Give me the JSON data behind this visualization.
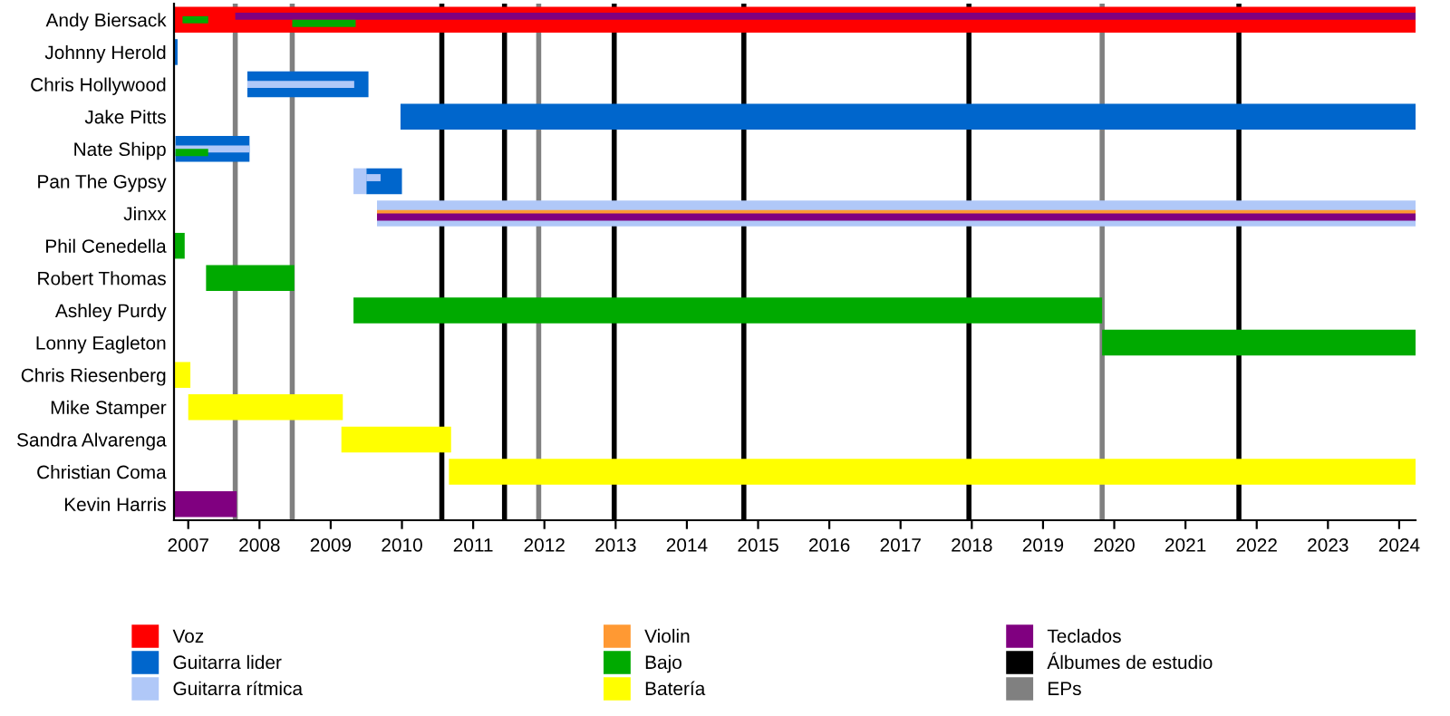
{
  "chart_data": {
    "type": "bar",
    "orientation": "horizontal",
    "categories": [
      "Andy Biersack",
      "Johnny Herold",
      "Chris Hollywood",
      "Jake Pitts",
      "Nate Shipp",
      "Pan The Gypsy",
      "Jinxx",
      "Phil Cenedella",
      "Robert Thomas",
      "Ashley Purdy",
      "Lonny Eagleton",
      "Chris Riesenberg",
      "Mike Stamper",
      "Sandra Alvarenga",
      "Christian Coma",
      "Kevin Harris"
    ],
    "series": [
      {
        "name": "Voz",
        "color": "#ff0000",
        "base": [
          2006.8,
          null,
          null,
          null,
          null,
          null,
          null,
          null,
          null,
          null,
          null,
          null,
          null,
          null,
          null,
          null
        ],
        "values": [
          17.43,
          null,
          null,
          null,
          null,
          null,
          null,
          null,
          null,
          null,
          null,
          null,
          null,
          null,
          null,
          null
        ]
      },
      {
        "name": "Guitarra lider",
        "color": "#0066cc",
        "base": [
          null,
          2006.8,
          2007.83,
          2009.98,
          2006.82,
          2009.5,
          null,
          null,
          null,
          null,
          null,
          null,
          null,
          null,
          null,
          null
        ],
        "values": [
          null,
          0.05,
          1.7,
          14.25,
          1.04,
          0.5,
          null,
          null,
          null,
          null,
          null,
          null,
          null,
          null,
          null,
          null
        ]
      },
      {
        "name": "Guitarra rítmica",
        "color": "#b0c8f8",
        "base": [
          null,
          null,
          2007.83,
          null,
          2006.82,
          2009.32,
          2009.65,
          null,
          null,
          null,
          null,
          null,
          null,
          null,
          null,
          null
        ],
        "values": [
          null,
          null,
          1.5,
          null,
          1.04,
          0.18,
          14.58,
          null,
          null,
          null,
          null,
          null,
          null,
          null,
          null,
          null
        ]
      },
      {
        "name": "Violin",
        "color": "#ff9933",
        "base": [
          null,
          null,
          null,
          null,
          null,
          null,
          2009.65,
          null,
          null,
          null,
          null,
          null,
          null,
          null,
          null,
          null
        ],
        "values": [
          null,
          null,
          null,
          null,
          null,
          null,
          14.58,
          null,
          null,
          null,
          null,
          null,
          null,
          null,
          null,
          null
        ]
      },
      {
        "name": "Bajo",
        "color": "#00aa00",
        "base": [
          2006.92,
          null,
          null,
          null,
          2006.82,
          null,
          null,
          2006.8,
          2007.25,
          2009.32,
          2019.83,
          null,
          null,
          null,
          null,
          null
        ],
        "values": [
          0.36,
          null,
          null,
          null,
          0.46,
          null,
          null,
          0.15,
          1.24,
          10.51,
          4.4,
          null,
          null,
          null,
          null,
          null
        ]
      },
      {
        "name": "Batería",
        "color": "#ffff00",
        "base": [
          null,
          null,
          null,
          null,
          null,
          null,
          null,
          null,
          null,
          null,
          null,
          2006.8,
          2007.0,
          2009.15,
          2010.66,
          null
        ],
        "values": [
          null,
          null,
          null,
          null,
          null,
          null,
          null,
          null,
          null,
          null,
          null,
          0.23,
          2.17,
          1.54,
          13.57,
          null
        ]
      },
      {
        "name": "Teclados",
        "color": "#800080",
        "base": [
          2007.66,
          null,
          null,
          null,
          null,
          null,
          2009.65,
          null,
          null,
          null,
          null,
          null,
          null,
          null,
          null,
          2006.8
        ],
        "values": [
          16.57,
          null,
          null,
          null,
          null,
          null,
          14.58,
          null,
          null,
          null,
          null,
          null,
          null,
          null,
          null,
          0.88
        ]
      },
      {
        "color": "#00aa00",
        "base": [
          2008.46,
          null,
          null,
          null,
          null,
          null,
          null,
          null,
          null,
          null,
          null,
          null,
          null,
          null,
          null,
          null
        ],
        "values": [
          0.89,
          null,
          null,
          null,
          null,
          null,
          null,
          null,
          null,
          null,
          null,
          null,
          null,
          null,
          null,
          null
        ]
      },
      {
        "color": "#b0c8f8",
        "base": [
          null,
          null,
          null,
          null,
          null,
          2009.5,
          null,
          null,
          null,
          null,
          null,
          null,
          null,
          null,
          null,
          null
        ],
        "values": [
          null,
          null,
          null,
          null,
          null,
          0.2,
          null,
          null,
          null,
          null,
          null,
          null,
          null,
          null,
          null,
          null
        ]
      }
    ],
    "ref_lines": [
      {
        "axis": "x",
        "value": 2010.56,
        "color": "#000000",
        "label": "Álbumes de estudio"
      },
      {
        "axis": "x",
        "value": 2011.44,
        "color": "#000000"
      },
      {
        "axis": "x",
        "value": 2012.98,
        "color": "#000000"
      },
      {
        "axis": "x",
        "value": 2014.8,
        "color": "#000000"
      },
      {
        "axis": "x",
        "value": 2017.96,
        "color": "#000000"
      },
      {
        "axis": "x",
        "value": 2021.75,
        "color": "#000000"
      },
      {
        "axis": "x",
        "value": 2007.66,
        "color": "#808080",
        "label": "EPs"
      },
      {
        "axis": "x",
        "value": 2008.46,
        "color": "#808080"
      },
      {
        "axis": "x",
        "value": 2011.92,
        "color": "#808080"
      },
      {
        "axis": "x",
        "value": 2019.83,
        "color": "#808080"
      }
    ],
    "xlim": [
      2006.8,
      2024.23
    ],
    "xticks": [
      2007,
      2008,
      2009,
      2010,
      2011,
      2012,
      2013,
      2014,
      2015,
      2016,
      2017,
      2018,
      2019,
      2020,
      2021,
      2022,
      2023,
      2024
    ],
    "legend": "bottom",
    "grid": false
  }
}
